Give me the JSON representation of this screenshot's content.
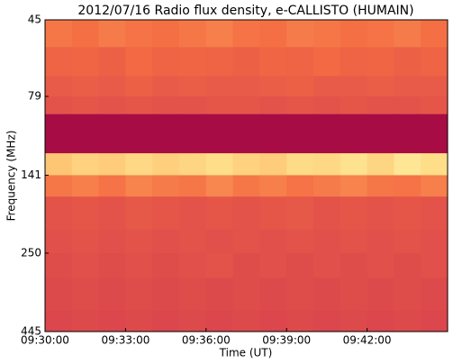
{
  "chart_data": {
    "type": "heatmap",
    "title": "2012/07/16  Radio flux density, e-CALLISTO (HUMAIN)",
    "xlabel": "Time (UT)",
    "ylabel": "Frequency (MHz)",
    "xlim": [
      34200,
      35100
    ],
    "xticks": [
      {
        "value": 34200,
        "label": "09:30:00"
      },
      {
        "value": 34380,
        "label": "09:33:00"
      },
      {
        "value": 34560,
        "label": "09:36:00"
      },
      {
        "value": 34740,
        "label": "09:39:00"
      },
      {
        "value": 34920,
        "label": "09:42:00"
      }
    ],
    "ylim": [
      45,
      445
    ],
    "yticks": [
      45,
      79,
      141,
      250,
      445
    ],
    "yscale": "log",
    "y_inverted": true,
    "x_edges": [
      34200,
      34260,
      34320,
      34380,
      34440,
      34500,
      34560,
      34620,
      34680,
      34740,
      34800,
      34860,
      34920,
      34980,
      35040,
      35100
    ],
    "y_edges": [
      45,
      55,
      68,
      79,
      90,
      120,
      141,
      165,
      210,
      250,
      300,
      380,
      445
    ],
    "zlim": [
      0,
      100
    ],
    "colormap": [
      "#9e0142",
      "#d53e4f",
      "#f46d43",
      "#fdae61",
      "#fee08b",
      "#ffffbf",
      "#abdda4"
    ],
    "z": [
      [
        36,
        34,
        37,
        35,
        34,
        36,
        38,
        35,
        34,
        37,
        36,
        34,
        35,
        37,
        34
      ],
      [
        30,
        31,
        29,
        32,
        30,
        31,
        30,
        29,
        31,
        30,
        32,
        30,
        31,
        29,
        30
      ],
      [
        27,
        28,
        27,
        29,
        27,
        28,
        27,
        27,
        28,
        29,
        27,
        27,
        28,
        27,
        27
      ],
      [
        24,
        25,
        24,
        25,
        24,
        24,
        25,
        25,
        24,
        25,
        24,
        25,
        24,
        24,
        25
      ],
      [
        3,
        3,
        3,
        3,
        3,
        3,
        3,
        3,
        3,
        3,
        3,
        3,
        3,
        3,
        3
      ],
      [
        58,
        62,
        60,
        64,
        61,
        63,
        66,
        62,
        60,
        65,
        64,
        68,
        63,
        70,
        66
      ],
      [
        36,
        38,
        35,
        39,
        37,
        36,
        40,
        36,
        38,
        35,
        37,
        39,
        36,
        35,
        38
      ],
      [
        24,
        25,
        24,
        26,
        25,
        24,
        25,
        24,
        25,
        26,
        24,
        25,
        24,
        25,
        24
      ],
      [
        23,
        24,
        23,
        24,
        23,
        24,
        23,
        24,
        23,
        24,
        23,
        24,
        23,
        24,
        23
      ],
      [
        22,
        23,
        22,
        23,
        22,
        23,
        24,
        22,
        23,
        22,
        23,
        22,
        23,
        22,
        23
      ],
      [
        21,
        22,
        21,
        22,
        21,
        22,
        21,
        22,
        21,
        22,
        21,
        22,
        21,
        22,
        21
      ],
      [
        20,
        21,
        20,
        21,
        20,
        21,
        20,
        21,
        20,
        21,
        20,
        21,
        20,
        21,
        20
      ]
    ]
  }
}
